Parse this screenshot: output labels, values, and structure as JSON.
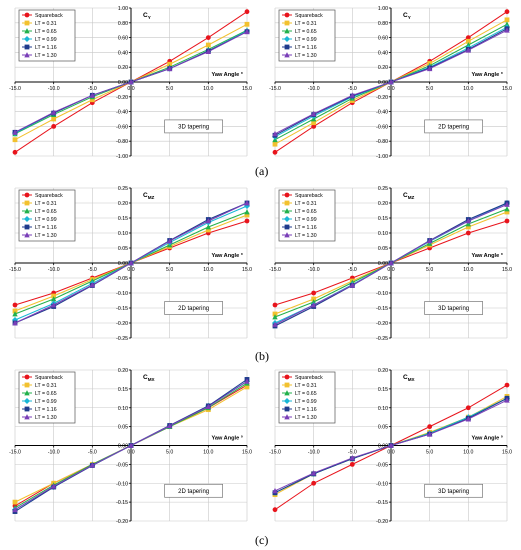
{
  "panel_labels": [
    "(a)",
    "(b)",
    "(c)"
  ],
  "series_names": [
    "Squareback",
    "LT = 0.31",
    "LT = 0.65",
    "LT = 0.99",
    "LT = 1.16",
    "LT = 1.30"
  ],
  "series_colors": [
    "#e8141c",
    "#f2c12e",
    "#22b14c",
    "#19b7d6",
    "#1f3b8c",
    "#7a3fb8"
  ],
  "series_markers": [
    "circle",
    "square",
    "triangle",
    "diamond",
    "square",
    "triangle"
  ],
  "chart_data": [
    {
      "type": "line",
      "title": "CY",
      "xlabel": "Yaw Angle °",
      "annotation": "3D tapering",
      "x": [
        -15,
        -10,
        -5,
        0,
        5,
        10,
        15
      ],
      "xticks": [
        "-15.0",
        "-10.0",
        "-5.0",
        "0.0",
        "5.0",
        "10.0",
        "15.0"
      ],
      "ylim": [
        -1.0,
        1.0
      ],
      "yticks": [
        "-1.00",
        "-0.80",
        "-0.60",
        "-0.40",
        "-0.20",
        "0.00",
        "0.20",
        "0.40",
        "0.60",
        "0.80",
        "1.00"
      ],
      "grid": true,
      "legend": "top-left",
      "series": [
        {
          "name": "Squareback",
          "values": [
            -0.95,
            -0.6,
            -0.28,
            0.0,
            0.28,
            0.6,
            0.95
          ]
        },
        {
          "name": "LT = 0.31",
          "values": [
            -0.78,
            -0.5,
            -0.24,
            0.0,
            0.24,
            0.5,
            0.78
          ]
        },
        {
          "name": "LT = 0.65",
          "values": [
            -0.7,
            -0.44,
            -0.2,
            0.0,
            0.2,
            0.44,
            0.7
          ]
        },
        {
          "name": "LT = 0.99",
          "values": [
            -0.69,
            -0.42,
            -0.18,
            0.0,
            0.18,
            0.42,
            0.69
          ]
        },
        {
          "name": "LT = 1.16",
          "values": [
            -0.68,
            -0.42,
            -0.18,
            0.0,
            0.18,
            0.42,
            0.68
          ]
        },
        {
          "name": "LT = 1.30",
          "values": [
            -0.68,
            -0.41,
            -0.18,
            0.0,
            0.18,
            0.41,
            0.68
          ]
        }
      ]
    },
    {
      "type": "line",
      "title": "CY",
      "xlabel": "Yaw Angle °",
      "annotation": "2D tapering",
      "x": [
        -15,
        -10,
        -5,
        0,
        5,
        10,
        15
      ],
      "xticks": [
        "-15.0",
        "-10.0",
        "-5.0",
        "0.0",
        "5.0",
        "10.0",
        "15.0"
      ],
      "ylim": [
        -1.0,
        1.0
      ],
      "yticks": [
        "-1.00",
        "-0.80",
        "-0.60",
        "-0.40",
        "-0.20",
        "0.00",
        "0.20",
        "0.40",
        "0.60",
        "0.80",
        "1.00"
      ],
      "grid": true,
      "legend": "top-left",
      "series": [
        {
          "name": "Squareback",
          "values": [
            -0.95,
            -0.6,
            -0.28,
            0.0,
            0.28,
            0.6,
            0.95
          ]
        },
        {
          "name": "LT = 0.31",
          "values": [
            -0.84,
            -0.55,
            -0.25,
            0.0,
            0.25,
            0.55,
            0.84
          ]
        },
        {
          "name": "LT = 0.65",
          "values": [
            -0.78,
            -0.5,
            -0.22,
            0.0,
            0.22,
            0.5,
            0.78
          ]
        },
        {
          "name": "LT = 0.99",
          "values": [
            -0.74,
            -0.46,
            -0.2,
            0.0,
            0.2,
            0.46,
            0.74
          ]
        },
        {
          "name": "LT = 1.16",
          "values": [
            -0.72,
            -0.44,
            -0.19,
            0.0,
            0.19,
            0.44,
            0.72
          ]
        },
        {
          "name": "LT = 1.30",
          "values": [
            -0.7,
            -0.43,
            -0.18,
            0.0,
            0.18,
            0.43,
            0.7
          ]
        }
      ]
    },
    {
      "type": "line",
      "title": "CMZ",
      "xlabel": "Yaw Angle °",
      "annotation": "2D tapering",
      "x": [
        -15,
        -10,
        -5,
        0,
        5,
        10,
        15
      ],
      "xticks": [
        "-15.0",
        "-10.0",
        "-5.0",
        "0.0",
        "5.0",
        "10.0",
        "15.0"
      ],
      "ylim": [
        -0.25,
        0.25
      ],
      "yticks": [
        "-0.25",
        "-0.20",
        "-0.15",
        "-0.10",
        "-0.05",
        "0.00",
        "0.05",
        "0.10",
        "0.15",
        "0.20",
        "0.25"
      ],
      "grid": true,
      "legend": "top-left",
      "series": [
        {
          "name": "Squareback",
          "values": [
            -0.14,
            -0.1,
            -0.05,
            0.0,
            0.05,
            0.1,
            0.14
          ]
        },
        {
          "name": "LT = 0.31",
          "values": [
            -0.16,
            -0.11,
            -0.055,
            0.0,
            0.055,
            0.11,
            0.16
          ]
        },
        {
          "name": "LT = 0.65",
          "values": [
            -0.17,
            -0.12,
            -0.06,
            0.0,
            0.06,
            0.12,
            0.17
          ]
        },
        {
          "name": "LT = 0.99",
          "values": [
            -0.19,
            -0.135,
            -0.068,
            0.0,
            0.068,
            0.135,
            0.19
          ]
        },
        {
          "name": "LT = 1.16",
          "values": [
            -0.2,
            -0.145,
            -0.075,
            0.0,
            0.075,
            0.145,
            0.2
          ]
        },
        {
          "name": "LT = 1.30",
          "values": [
            -0.2,
            -0.14,
            -0.073,
            0.0,
            0.073,
            0.14,
            0.2
          ]
        }
      ]
    },
    {
      "type": "line",
      "title": "CMZ",
      "xlabel": "Yaw Angle °",
      "annotation": "3D tapering",
      "x": [
        -15,
        -10,
        -5,
        0,
        5,
        10,
        15
      ],
      "xticks": [
        "-15.0",
        "-10.0",
        "-5.0",
        "0.0",
        "5.0",
        "10.0",
        "15.0"
      ],
      "ylim": [
        -0.25,
        0.25
      ],
      "yticks": [
        "-0.25",
        "-0.20",
        "-0.15",
        "-0.10",
        "-0.05",
        "0.00",
        "0.05",
        "0.10",
        "0.15",
        "0.20",
        "0.25"
      ],
      "grid": true,
      "legend": "top-left",
      "series": [
        {
          "name": "Squareback",
          "values": [
            -0.14,
            -0.1,
            -0.05,
            0.0,
            0.05,
            0.1,
            0.14
          ]
        },
        {
          "name": "LT = 0.31",
          "values": [
            -0.17,
            -0.12,
            -0.06,
            0.0,
            0.06,
            0.12,
            0.17
          ]
        },
        {
          "name": "LT = 0.65",
          "values": [
            -0.18,
            -0.13,
            -0.065,
            0.0,
            0.065,
            0.13,
            0.18
          ]
        },
        {
          "name": "LT = 0.99",
          "values": [
            -0.2,
            -0.14,
            -0.072,
            0.0,
            0.072,
            0.14,
            0.2
          ]
        },
        {
          "name": "LT = 1.16",
          "values": [
            -0.21,
            -0.145,
            -0.075,
            0.0,
            0.075,
            0.145,
            0.2
          ]
        },
        {
          "name": "LT = 1.30",
          "values": [
            -0.205,
            -0.14,
            -0.074,
            0.0,
            0.074,
            0.14,
            0.195
          ]
        }
      ]
    },
    {
      "type": "line",
      "title": "CMX",
      "xlabel": "Yaw Angle °",
      "annotation": "2D tapering",
      "x": [
        -15,
        -10,
        -5,
        0,
        5,
        10,
        15
      ],
      "xticks": [
        "-15.0",
        "-10.0",
        "-5.0",
        "0.0",
        "5.0",
        "10.0",
        "15.0"
      ],
      "ylim": [
        -0.2,
        0.2
      ],
      "yticks": [
        "-0.20",
        "-0.15",
        "-0.10",
        "-0.05",
        "0.00",
        "0.05",
        "0.10",
        "0.15",
        "0.20"
      ],
      "grid": true,
      "legend": "top-left",
      "series": [
        {
          "name": "Squareback",
          "values": [
            -0.16,
            -0.1,
            -0.05,
            0.0,
            0.05,
            0.1,
            0.16
          ]
        },
        {
          "name": "LT = 0.31",
          "values": [
            -0.15,
            -0.1,
            -0.05,
            0.0,
            0.05,
            0.095,
            0.155
          ]
        },
        {
          "name": "LT = 0.65",
          "values": [
            -0.165,
            -0.105,
            -0.05,
            0.0,
            0.05,
            0.1,
            0.165
          ]
        },
        {
          "name": "LT = 0.99",
          "values": [
            -0.17,
            -0.11,
            -0.052,
            0.0,
            0.052,
            0.105,
            0.17
          ]
        },
        {
          "name": "LT = 1.16",
          "values": [
            -0.175,
            -0.11,
            -0.053,
            0.0,
            0.053,
            0.105,
            0.175
          ]
        },
        {
          "name": "LT = 1.30",
          "values": [
            -0.17,
            -0.108,
            -0.052,
            0.0,
            0.052,
            0.103,
            0.17
          ]
        }
      ]
    },
    {
      "type": "line",
      "title": "CMX",
      "xlabel": "Yaw Angle °",
      "annotation": "3D tapering",
      "x": [
        -15,
        -10,
        -5,
        0,
        5,
        10,
        15
      ],
      "xticks": [
        "-15.0",
        "-10.0",
        "-5.0",
        "0.0",
        "5.0",
        "10.0",
        "15.0"
      ],
      "ylim": [
        -0.2,
        0.2
      ],
      "yticks": [
        "-0.20",
        "-0.15",
        "-0.10",
        "-0.05",
        "0.00",
        "0.05",
        "0.10",
        "0.15",
        "0.20"
      ],
      "grid": true,
      "legend": "top-left",
      "series": [
        {
          "name": "Squareback",
          "values": [
            -0.17,
            -0.1,
            -0.05,
            0.0,
            0.05,
            0.1,
            0.16
          ]
        },
        {
          "name": "LT = 0.31",
          "values": [
            -0.13,
            -0.075,
            -0.035,
            0.0,
            0.035,
            0.075,
            0.13
          ]
        },
        {
          "name": "LT = 0.65",
          "values": [
            -0.125,
            -0.075,
            -0.035,
            0.0,
            0.033,
            0.075,
            0.125
          ]
        },
        {
          "name": "LT = 0.99",
          "values": [
            -0.125,
            -0.075,
            -0.035,
            0.0,
            0.032,
            0.075,
            0.125
          ]
        },
        {
          "name": "LT = 1.16",
          "values": [
            -0.125,
            -0.075,
            -0.035,
            0.0,
            0.03,
            0.072,
            0.125
          ]
        },
        {
          "name": "LT = 1.30",
          "values": [
            -0.12,
            -0.073,
            -0.033,
            0.0,
            0.03,
            0.07,
            0.12
          ]
        }
      ]
    }
  ]
}
